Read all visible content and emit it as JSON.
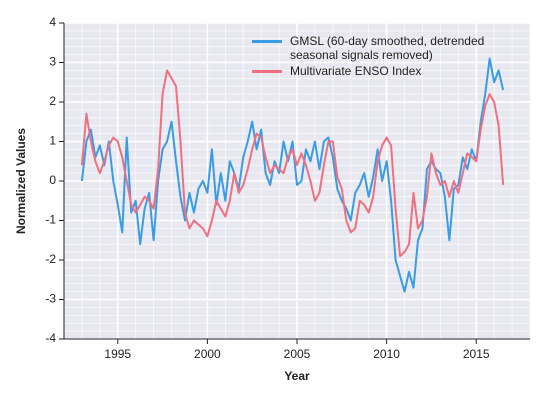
{
  "chart_data": {
    "type": "line",
    "xlabel": "Year",
    "ylabel": "Normalized Values",
    "xlim": [
      1992,
      2018
    ],
    "ylim": [
      -4,
      4
    ],
    "xticks": [
      1995,
      2000,
      2005,
      2010,
      2015
    ],
    "yticks": [
      -4,
      -3,
      -2,
      -1,
      0,
      1,
      2,
      3,
      4
    ],
    "grid": true,
    "legend": "upper right",
    "x": [
      1993,
      1993.25,
      1993.5,
      1993.75,
      1994,
      1994.25,
      1994.5,
      1994.75,
      1995,
      1995.25,
      1995.5,
      1995.75,
      1996,
      1996.25,
      1996.5,
      1996.75,
      1997,
      1997.25,
      1997.5,
      1997.75,
      1998,
      1998.25,
      1998.5,
      1998.75,
      1999,
      1999.25,
      1999.5,
      1999.75,
      2000,
      2000.25,
      2000.5,
      2000.75,
      2001,
      2001.25,
      2001.5,
      2001.75,
      2002,
      2002.25,
      2002.5,
      2002.75,
      2003,
      2003.25,
      2003.5,
      2003.75,
      2004,
      2004.25,
      2004.5,
      2004.75,
      2005,
      2005.25,
      2005.5,
      2005.75,
      2006,
      2006.25,
      2006.5,
      2006.75,
      2007,
      2007.25,
      2007.5,
      2007.75,
      2008,
      2008.25,
      2008.5,
      2008.75,
      2009,
      2009.25,
      2009.5,
      2009.75,
      2010,
      2010.25,
      2010.5,
      2010.75,
      2011,
      2011.25,
      2011.5,
      2011.75,
      2012,
      2012.25,
      2012.5,
      2012.75,
      2013,
      2013.25,
      2013.5,
      2013.75,
      2014,
      2014.25,
      2014.5,
      2014.75,
      2015,
      2015.25,
      2015.5,
      2015.75,
      2016,
      2016.25,
      2016.5
    ],
    "series": [
      {
        "name": "GMSL (60-day smoothed, detrended seasonal signals removed)",
        "color": "#3a9be6",
        "values": [
          0.0,
          1.0,
          1.3,
          0.6,
          0.9,
          0.4,
          1.0,
          0.0,
          -0.6,
          -1.3,
          1.1,
          -0.8,
          -0.5,
          -1.6,
          -0.7,
          -0.3,
          -1.5,
          0.0,
          0.8,
          1.0,
          1.5,
          0.5,
          -0.4,
          -1.0,
          -0.3,
          -0.8,
          -0.2,
          0.0,
          -0.3,
          0.8,
          -0.6,
          0.2,
          -0.5,
          0.5,
          0.2,
          -0.2,
          0.6,
          1.0,
          1.5,
          0.8,
          1.3,
          0.2,
          -0.1,
          0.5,
          0.2,
          1.0,
          0.5,
          1.0,
          -0.1,
          0.0,
          0.8,
          0.5,
          1.0,
          0.3,
          1.0,
          1.1,
          0.6,
          -0.2,
          -0.5,
          -0.7,
          -1.0,
          -0.3,
          -0.1,
          0.2,
          -0.4,
          0.1,
          0.8,
          0.0,
          0.5,
          -0.5,
          -2.0,
          -2.4,
          -2.8,
          -2.3,
          -2.7,
          -1.5,
          -1.2,
          0.3,
          0.5,
          0.3,
          0.2,
          -0.4,
          -1.5,
          -0.2,
          -0.1,
          0.6,
          0.3,
          0.8,
          0.5,
          1.5,
          2.2,
          3.1,
          2.5,
          2.8,
          2.3
        ]
      },
      {
        "name": "Multivariate ENSO Index",
        "color": "#f0707f",
        "values": [
          0.4,
          1.7,
          1.0,
          0.5,
          0.2,
          0.5,
          0.9,
          1.1,
          1.0,
          0.6,
          0.0,
          -0.6,
          -0.8,
          -0.6,
          -0.4,
          -0.5,
          -0.7,
          0.3,
          2.2,
          2.8,
          2.6,
          2.4,
          1.0,
          -0.8,
          -1.2,
          -1.0,
          -1.1,
          -1.2,
          -1.4,
          -1.0,
          -0.5,
          -0.7,
          -0.9,
          -0.5,
          0.2,
          -0.3,
          -0.1,
          0.3,
          0.8,
          1.2,
          1.1,
          0.6,
          0.2,
          0.4,
          0.3,
          0.2,
          0.6,
          0.8,
          0.4,
          0.7,
          0.4,
          0.0,
          -0.5,
          -0.3,
          0.4,
          1.0,
          1.0,
          0.1,
          -0.2,
          -1.0,
          -1.3,
          -1.2,
          -0.5,
          -0.6,
          -0.8,
          -0.4,
          0.5,
          0.9,
          1.1,
          0.9,
          -0.7,
          -1.9,
          -1.8,
          -1.6,
          -0.3,
          -1.2,
          -1.0,
          -0.4,
          0.7,
          0.2,
          -0.1,
          0.0,
          -0.4,
          0.0,
          -0.3,
          0.2,
          0.7,
          0.6,
          0.5,
          1.3,
          1.9,
          2.2,
          2.0,
          1.4,
          -0.1
        ]
      }
    ]
  }
}
